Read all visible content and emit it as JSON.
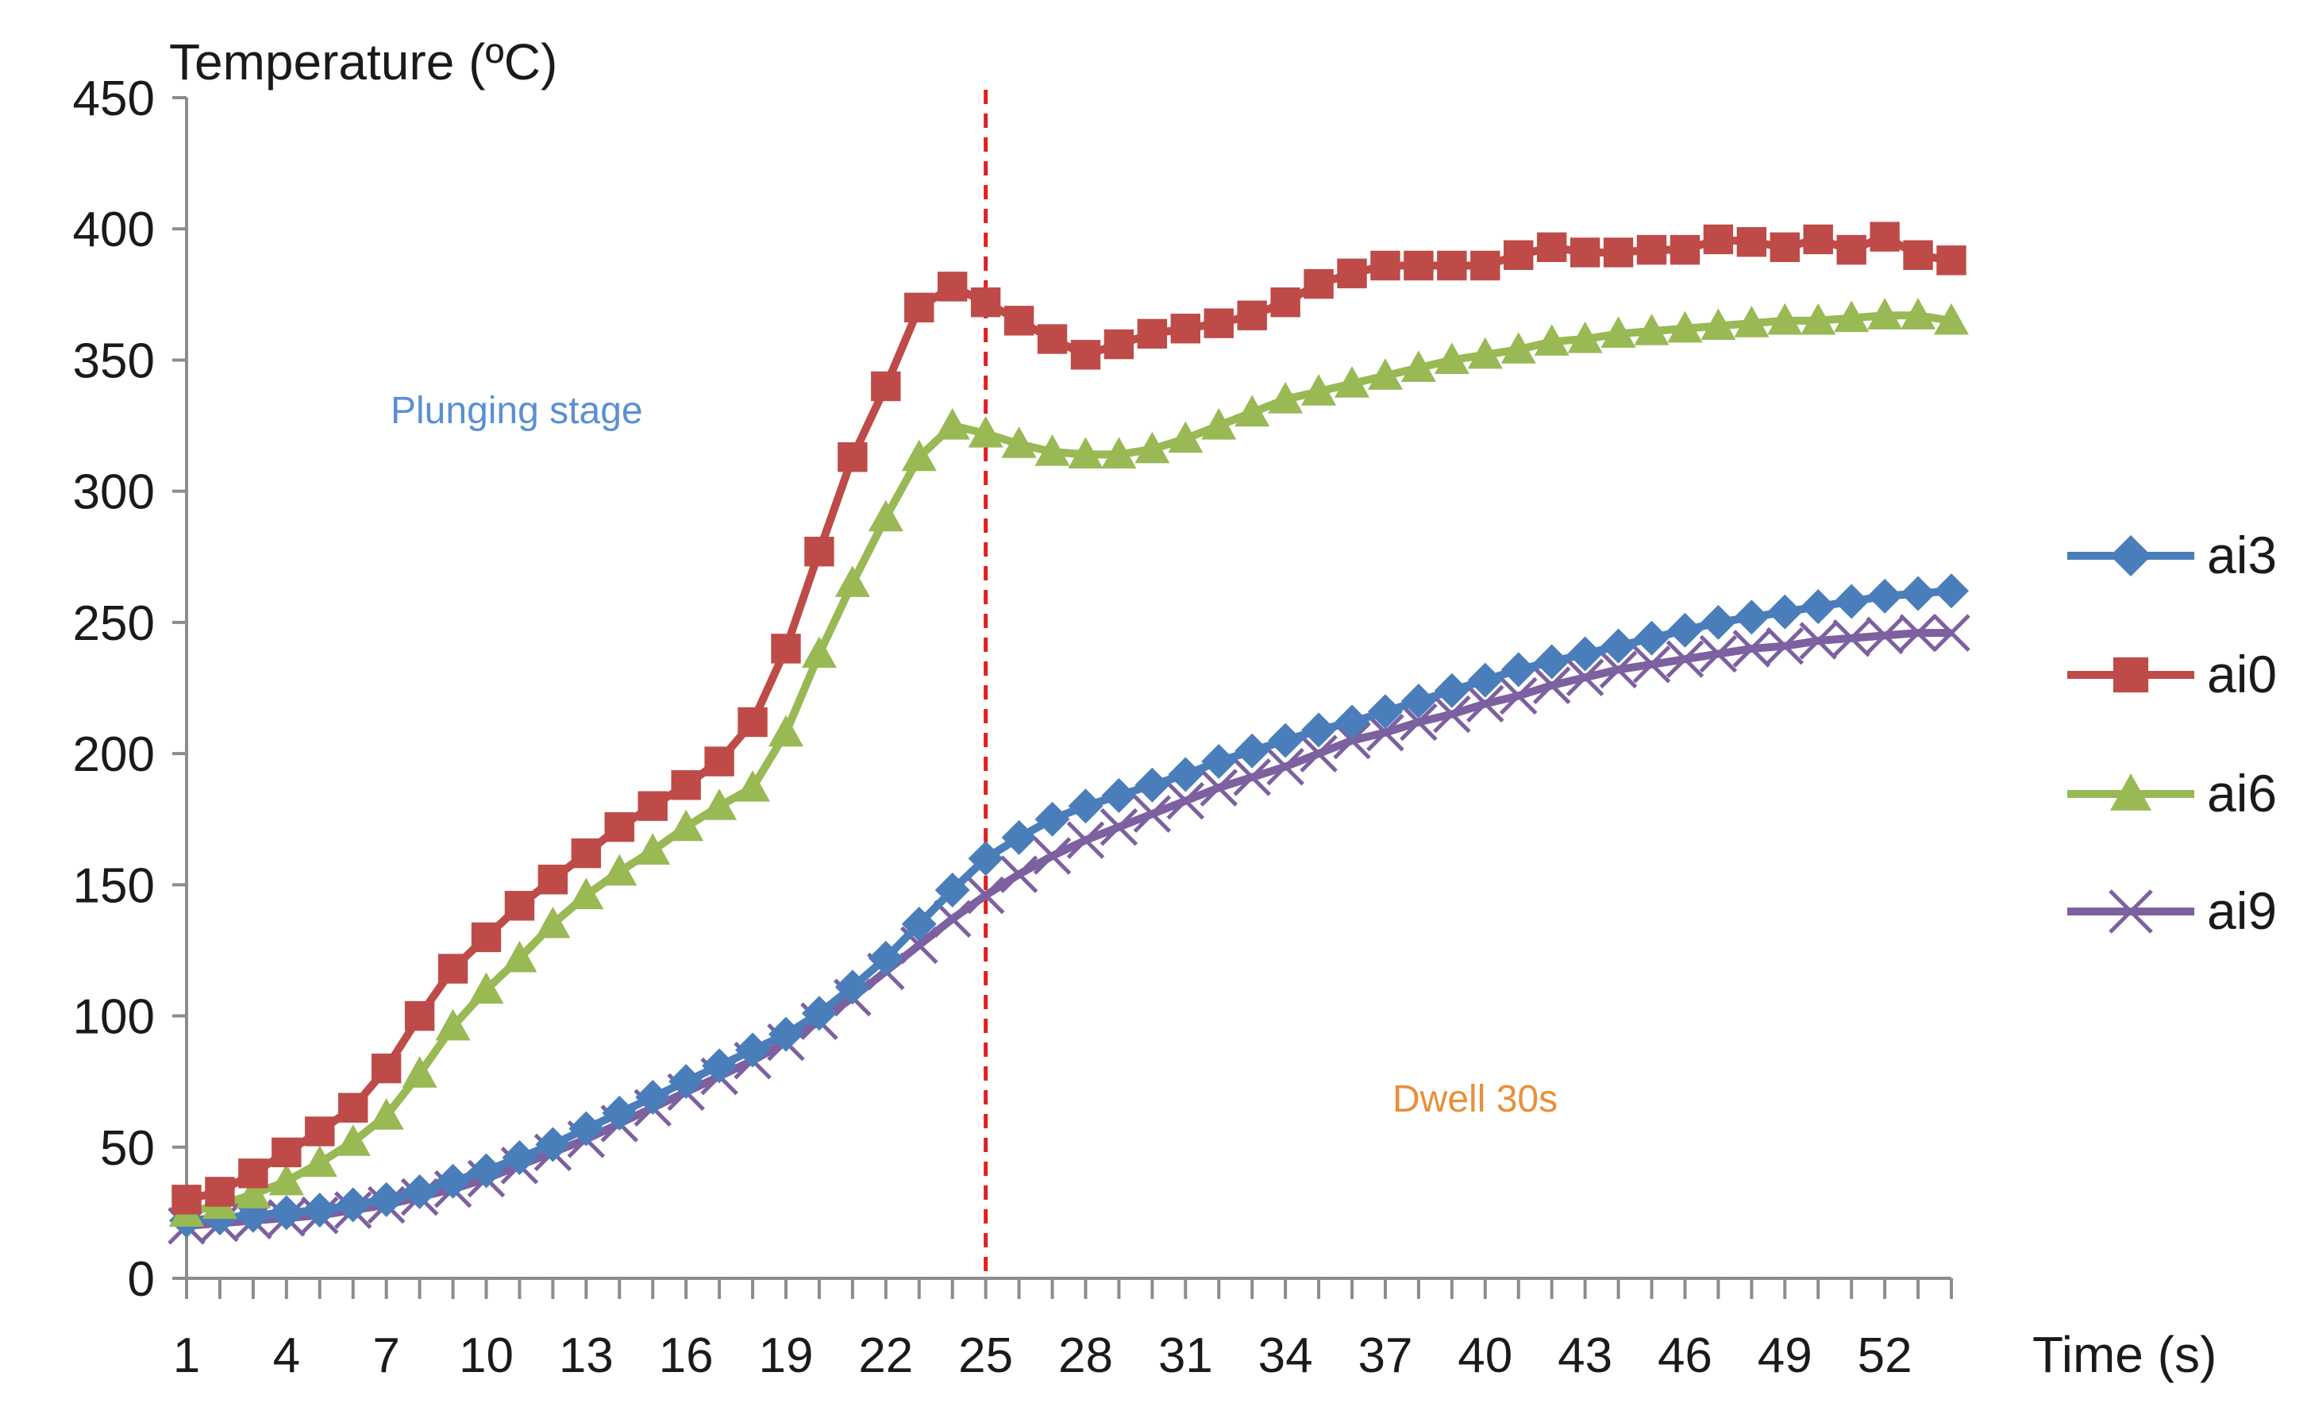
{
  "chart_data": {
    "type": "line",
    "title": "",
    "ylabel": "Temperature (ºC)",
    "xlabel": "Time (s)",
    "ylim": [
      0,
      450
    ],
    "yticks": [
      0,
      50,
      100,
      150,
      200,
      250,
      300,
      350,
      400,
      450
    ],
    "xlim": [
      1,
      54
    ],
    "xtick_labels": [
      1,
      4,
      7,
      10,
      13,
      16,
      19,
      22,
      25,
      28,
      31,
      34,
      37,
      40,
      43,
      46,
      49,
      52
    ],
    "grid": false,
    "legend_position": "right",
    "x": [
      1,
      2,
      3,
      4,
      5,
      6,
      7,
      8,
      9,
      10,
      11,
      12,
      13,
      14,
      15,
      16,
      17,
      18,
      19,
      20,
      21,
      22,
      23,
      24,
      25,
      26,
      27,
      28,
      29,
      30,
      31,
      32,
      33,
      34,
      35,
      36,
      37,
      38,
      39,
      40,
      41,
      42,
      43,
      44,
      45,
      46,
      47,
      48,
      49,
      50,
      51,
      52,
      53,
      54
    ],
    "series": [
      {
        "name": "ai3",
        "color": "#4a7ebb",
        "marker": "diamond",
        "values": [
          22,
          23,
          24,
          25,
          26,
          28,
          30,
          33,
          37,
          41,
          46,
          51,
          57,
          63,
          69,
          75,
          81,
          87,
          93,
          101,
          111,
          122,
          135,
          148,
          160,
          168,
          175,
          180,
          184,
          188,
          192,
          197,
          201,
          205,
          209,
          212,
          216,
          220,
          224,
          228,
          232,
          235,
          238,
          241,
          244,
          247,
          250,
          252,
          254,
          256,
          258,
          260,
          261,
          262
        ]
      },
      {
        "name": "ai0",
        "color": "#be4b48",
        "marker": "square",
        "values": [
          30,
          33,
          40,
          48,
          56,
          65,
          80,
          100,
          118,
          130,
          142,
          152,
          162,
          172,
          180,
          188,
          197,
          212,
          240,
          277,
          313,
          340,
          370,
          378,
          372,
          365,
          358,
          352,
          356,
          360,
          362,
          364,
          367,
          372,
          379,
          383,
          386,
          386,
          386,
          386,
          390,
          393,
          391,
          391,
          392,
          392,
          396,
          395,
          393,
          396,
          392,
          397,
          390,
          388
        ]
      },
      {
        "name": "ai6",
        "color": "#98b954",
        "marker": "triangle",
        "values": [
          25,
          28,
          32,
          37,
          44,
          52,
          62,
          78,
          96,
          110,
          122,
          135,
          146,
          155,
          163,
          172,
          180,
          187,
          208,
          238,
          265,
          290,
          313,
          325,
          322,
          318,
          315,
          314,
          314,
          316,
          320,
          325,
          330,
          335,
          338,
          341,
          344,
          347,
          350,
          352,
          354,
          357,
          358,
          360,
          361,
          362,
          363,
          364,
          365,
          365,
          366,
          367,
          367,
          365
        ]
      },
      {
        "name": "ai9",
        "color": "#7d60a0",
        "marker": "x",
        "values": [
          20,
          21,
          22,
          23,
          24,
          26,
          28,
          31,
          34,
          38,
          43,
          48,
          53,
          59,
          65,
          71,
          77,
          83,
          90,
          98,
          107,
          117,
          127,
          137,
          146,
          154,
          161,
          167,
          172,
          177,
          182,
          187,
          191,
          195,
          200,
          205,
          208,
          212,
          215,
          219,
          222,
          226,
          229,
          232,
          234,
          236,
          238,
          240,
          241,
          243,
          244,
          245,
          246,
          246
        ]
      }
    ],
    "annotations": [
      {
        "text": "Plunging stage",
        "color": "#5b8fd4"
      },
      {
        "text": "Dwell 30s",
        "color": "#e98f3a"
      }
    ],
    "reference_line": {
      "x": 25,
      "color": "#e02020",
      "style": "dashed"
    }
  }
}
